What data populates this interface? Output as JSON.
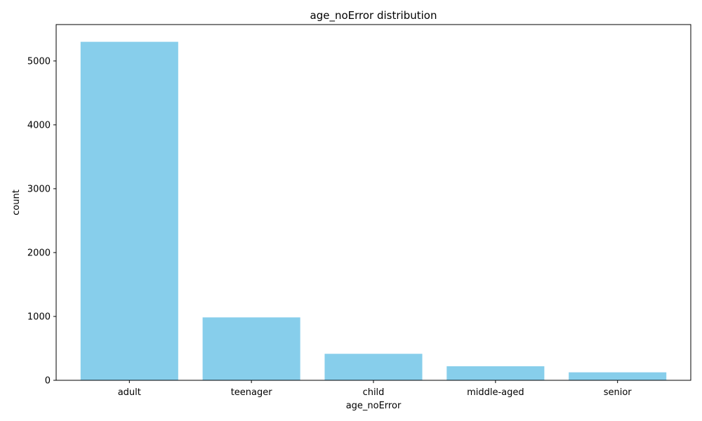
{
  "chart_data": {
    "type": "bar",
    "title": "age_noError distribution",
    "xlabel": "age_noError",
    "ylabel": "count",
    "categories": [
      "adult",
      "teenager",
      "child",
      "middle-aged",
      "senior"
    ],
    "values": [
      5300,
      985,
      415,
      220,
      125
    ],
    "ylim": [
      0,
      5570
    ],
    "yticks": [
      0,
      1000,
      2000,
      3000,
      4000,
      5000
    ],
    "bar_color": "#87ceeb",
    "grid": false,
    "legend": "none"
  }
}
